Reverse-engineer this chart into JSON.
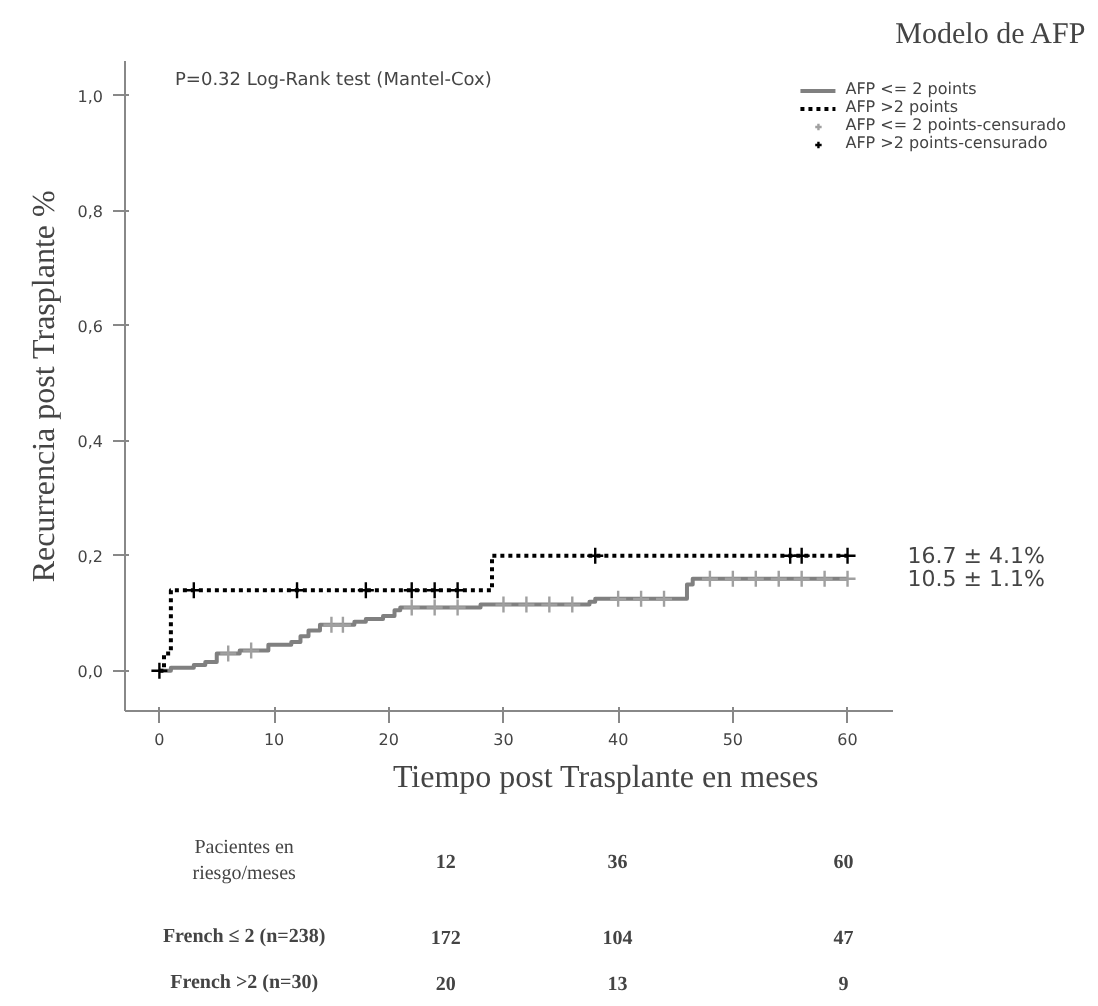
{
  "chart_data": [
    {
      "type": "step",
      "title": "Modelo de AFP",
      "xlabel": "Tiempo post Trasplante en meses",
      "ylabel": "Recurrencia post Trasplante %",
      "xlim": [
        -3,
        64
      ],
      "ylim": [
        -0.07,
        1.06
      ],
      "xticks": [
        0,
        10,
        20,
        30,
        40,
        50,
        60
      ],
      "yticks": [
        {
          "value": 0,
          "label": "0,0"
        },
        {
          "value": 0.2,
          "label": "0,2"
        },
        {
          "value": 0.4,
          "label": "0,4"
        },
        {
          "value": 0.6,
          "label": "0,6"
        },
        {
          "value": 0.8,
          "label": "0,8"
        },
        {
          "value": 1.0,
          "label": "1,0"
        }
      ],
      "grid": false,
      "legend": "top right",
      "series": [
        {
          "name": "AFP <= 2 points",
          "type": "step",
          "color": "#808080",
          "line_style": "solid",
          "x": [
            0,
            1,
            3,
            4,
            5,
            7,
            9.5,
            11.5,
            12.3,
            13,
            14,
            17,
            18,
            19.5,
            20.5,
            21,
            28,
            37.5,
            38,
            46,
            46.5,
            60
          ],
          "values": [
            0,
            0.005,
            0.01,
            0.015,
            0.03,
            0.035,
            0.045,
            0.05,
            0.06,
            0.07,
            0.08,
            0.085,
            0.09,
            0.095,
            0.105,
            0.11,
            0.115,
            0.12,
            0.125,
            0.15,
            0.16,
            0.16
          ]
        },
        {
          "name": "AFP >2 points",
          "type": "step",
          "color": "#000000",
          "line_style": "dotted",
          "x": [
            0,
            0.4,
            1,
            29,
            60
          ],
          "values": [
            0,
            0.03,
            0.14,
            0.2,
            0.2
          ]
        },
        {
          "name": "AFP <= 2 points-censurado",
          "type": "scatter",
          "marker": "cross",
          "color": "#a0a0a0",
          "x": [
            6,
            8,
            15,
            16,
            22,
            24,
            26,
            30,
            32,
            34,
            36,
            40,
            42,
            44,
            48,
            50,
            52,
            54,
            56,
            58,
            60
          ],
          "values": [
            0.03,
            0.035,
            0.08,
            0.08,
            0.11,
            0.11,
            0.11,
            0.115,
            0.115,
            0.115,
            0.115,
            0.125,
            0.125,
            0.125,
            0.16,
            0.16,
            0.16,
            0.16,
            0.16,
            0.16,
            0.16
          ]
        },
        {
          "name": "AFP >2 points-censurado",
          "type": "scatter",
          "marker": "cross",
          "color": "#000000",
          "x": [
            0,
            3,
            12,
            18,
            22,
            24,
            26,
            38,
            55,
            56,
            60
          ],
          "values": [
            0,
            0.14,
            0.14,
            0.14,
            0.14,
            0.14,
            0.14,
            0.2,
            0.2,
            0.2,
            0.2
          ]
        }
      ],
      "annotations": [
        "P=0.32 Log-Rank test (Mantel-Cox)",
        {
          "text": "16.7 ± 4.1%",
          "x": 60,
          "y": 0.2
        },
        {
          "text": "10.5 ± 1.1%",
          "x": 60,
          "y": 0.16
        }
      ]
    },
    {
      "type": "other",
      "annotations": [
        "Pacientes en\nriesgo/meses",
        "12",
        "36",
        "60",
        "French ≤ 2 (n=238)",
        "172",
        "104",
        "47",
        "French >2 (n=30)",
        "20",
        "13",
        "9"
      ]
    }
  ]
}
